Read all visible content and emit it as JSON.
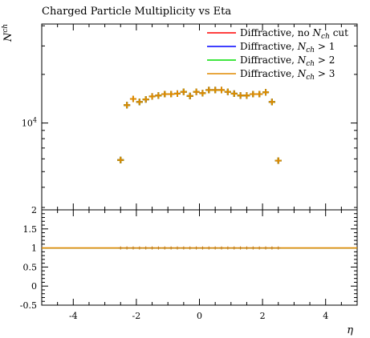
{
  "chart_data": {
    "type": "scatter",
    "title": "Charged Particle Multiplicity vs Eta",
    "xlabel": "η",
    "ylabel": "N^ch",
    "xlim": [
      -5,
      5
    ],
    "ylog": true,
    "ylim": [
      2900,
      41000
    ],
    "ytick_labels": [
      "10^4"
    ],
    "x": [
      -2.5,
      -2.3,
      -2.1,
      -1.9,
      -1.7,
      -1.5,
      -1.3,
      -1.1,
      -0.9,
      -0.7,
      -0.5,
      -0.3,
      -0.1,
      0.1,
      0.3,
      0.5,
      0.7,
      0.9,
      1.1,
      1.3,
      1.5,
      1.7,
      1.9,
      2.1,
      2.3,
      2.5
    ],
    "series": [
      {
        "name": "Diffractive, no N_ch cut",
        "color": "#ff0000",
        "legend_text": "Diffractive, no ",
        "legend_math": "N",
        "legend_sub": "ch",
        "legend_rest": " cut",
        "values": [
          5900,
          12900,
          14100,
          13500,
          14000,
          14600,
          14800,
          15100,
          15100,
          15200,
          15600,
          14700,
          15600,
          15300,
          16000,
          16000,
          16000,
          15600,
          15200,
          14800,
          14800,
          15100,
          15100,
          15500,
          13500,
          5850
        ]
      },
      {
        "name": "Diffractive, N_ch > 1",
        "color": "#0000ff",
        "legend_text": "Diffractive, ",
        "legend_math": "N",
        "legend_sub": "ch",
        "legend_rest": " > 1",
        "values": [
          5900,
          12900,
          14100,
          13500,
          14000,
          14600,
          14800,
          15100,
          15100,
          15200,
          15600,
          14700,
          15600,
          15300,
          16000,
          16000,
          16000,
          15600,
          15200,
          14800,
          14800,
          15100,
          15100,
          15500,
          13500,
          5850
        ]
      },
      {
        "name": "Diffractive, N_ch > 2",
        "color": "#00dd00",
        "legend_text": "Diffractive, ",
        "legend_math": "N",
        "legend_sub": "ch",
        "legend_rest": " > 2",
        "values": [
          5900,
          12900,
          14100,
          13500,
          14000,
          14600,
          14800,
          15100,
          15100,
          15200,
          15600,
          14700,
          15600,
          15300,
          16000,
          16000,
          16000,
          15600,
          15200,
          14800,
          14800,
          15100,
          15100,
          15500,
          13500,
          5850
        ]
      },
      {
        "name": "Diffractive, N_ch > 3",
        "color": "#e08a00",
        "legend_text": "Diffractive, ",
        "legend_math": "N",
        "legend_sub": "ch",
        "legend_rest": " > 3",
        "values": [
          5900,
          12900,
          14100,
          13500,
          14000,
          14600,
          14800,
          15100,
          15100,
          15200,
          15600,
          14700,
          15600,
          15300,
          16000,
          16000,
          16000,
          15600,
          15200,
          14800,
          14800,
          15100,
          15100,
          15500,
          13500,
          5850
        ]
      }
    ],
    "ratio": {
      "ylim": [
        -0.5,
        2
      ],
      "ytick_labels": [
        "-0.5",
        "0",
        "0.5",
        "1",
        "1.5",
        "2"
      ],
      "ytick_values": [
        -0.5,
        0,
        0.5,
        1,
        1.5,
        2
      ],
      "value": 1
    },
    "xtick_labels": [
      "-4",
      "-2",
      "0",
      "2",
      "4"
    ],
    "xtick_values": [
      -4,
      -2,
      0,
      2,
      4
    ],
    "legend_position": "top-right"
  }
}
